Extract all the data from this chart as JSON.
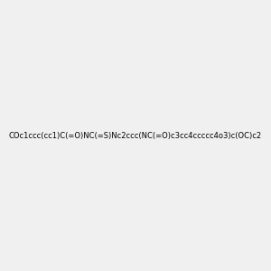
{
  "smiles": "COc1ccc(cc1)C(=O)NC(=S)Nc2ccc(NC(=O)c3cc4ccccc4o3)c(OC)c2",
  "img_size": [
    300,
    300
  ],
  "background_color": "#f0f0f0"
}
